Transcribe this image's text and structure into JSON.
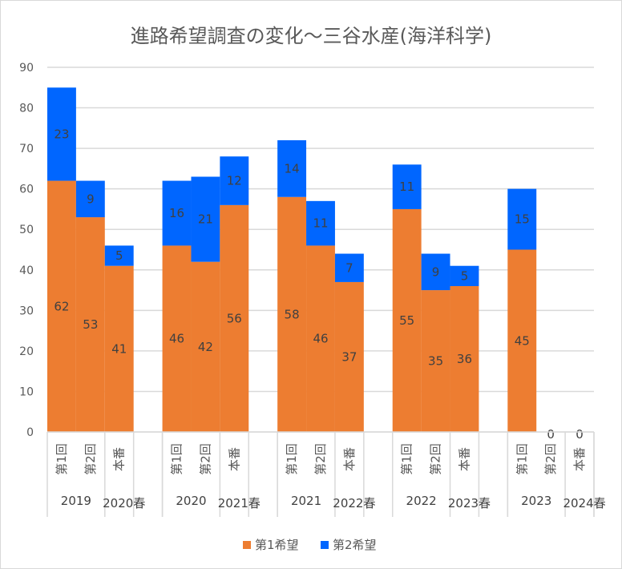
{
  "chart_data": {
    "type": "bar",
    "stacked": true,
    "title": "進路希望調査の変化～三谷水産(海洋科学)",
    "xlabel": "",
    "ylabel": "",
    "ylim": [
      0,
      90
    ],
    "yticks": [
      0,
      10,
      20,
      30,
      40,
      50,
      60,
      70,
      80,
      90
    ],
    "grid": true,
    "legend_position": "bottom",
    "groups": [
      {
        "label": "2019",
        "spring_label": "2020春",
        "categories": [
          "第1回",
          "第2回",
          "本番"
        ]
      },
      {
        "label": "2020",
        "spring_label": "2021春",
        "categories": [
          "第1回",
          "第2回",
          "本番"
        ]
      },
      {
        "label": "2021",
        "spring_label": "2022春",
        "categories": [
          "第1回",
          "第2回",
          "本番"
        ]
      },
      {
        "label": "2022",
        "spring_label": "2023春",
        "categories": [
          "第1回",
          "第2回",
          "本番"
        ]
      },
      {
        "label": "2023",
        "spring_label": "2024春",
        "categories": [
          "第1回",
          "第2回",
          "本番"
        ]
      }
    ],
    "series": [
      {
        "name": "第1希望",
        "color": "#ED7D31",
        "values": [
          [
            62,
            53,
            41
          ],
          [
            46,
            42,
            56
          ],
          [
            58,
            46,
            37
          ],
          [
            55,
            35,
            36
          ],
          [
            45,
            0,
            0
          ]
        ]
      },
      {
        "name": "第2希望",
        "color": "#0066FF",
        "values": [
          [
            23,
            9,
            5
          ],
          [
            16,
            21,
            12
          ],
          [
            14,
            11,
            7
          ],
          [
            11,
            9,
            5
          ],
          [
            15,
            0,
            0
          ]
        ]
      }
    ]
  }
}
